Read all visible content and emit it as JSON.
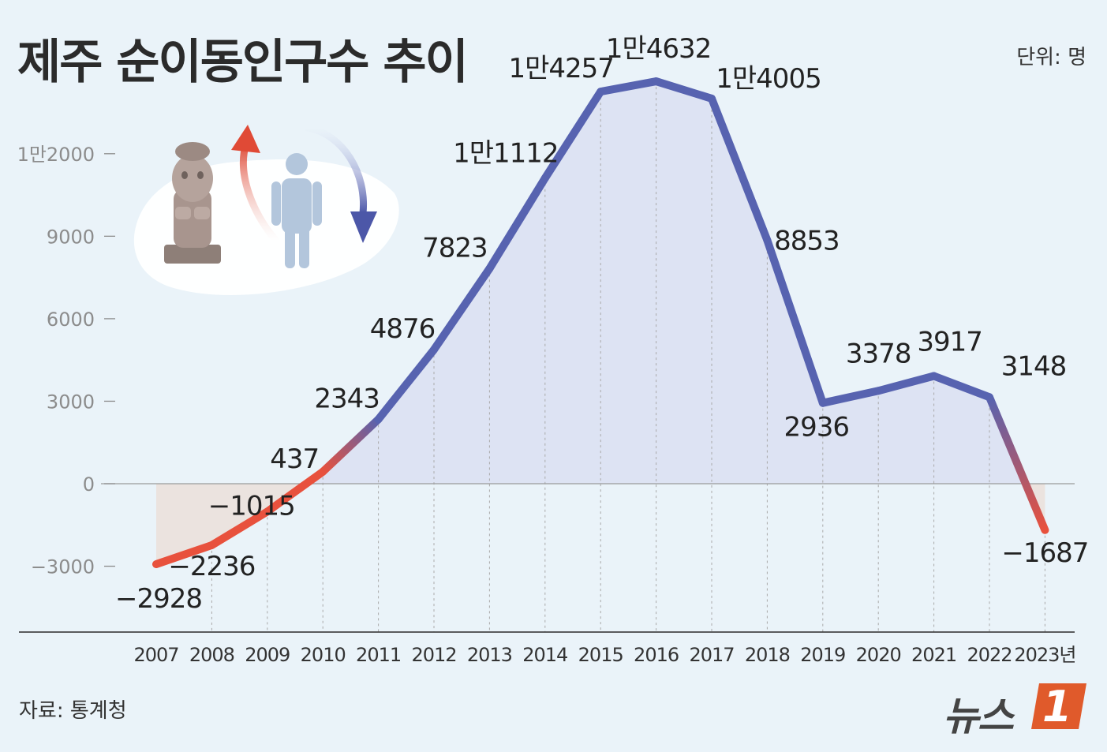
{
  "title": "제주 순이동인구수 추이",
  "unit_label": "단위: 명",
  "source": "자료: 통계청",
  "logo": {
    "text": "뉴스",
    "badge": "1"
  },
  "colors": {
    "background": "#eaf3f9",
    "positive_line": "#5763b0",
    "negative_line": "#e8513d",
    "positive_fill": "#dde3f3",
    "negative_fill": "#ebe3df",
    "axis": "#888888",
    "logo_accent": "#e05a2b"
  },
  "illustration": {
    "icons": [
      "dol-hareubang-icon",
      "person-icon",
      "arrow-up-icon",
      "arrow-down-icon",
      "jeju-island-icon"
    ]
  },
  "chart_data": {
    "type": "line",
    "title": "제주 순이동인구수 추이",
    "unit": "명",
    "x_suffix": "년",
    "categories": [
      "2007",
      "2008",
      "2009",
      "2010",
      "2011",
      "2012",
      "2013",
      "2014",
      "2015",
      "2016",
      "2017",
      "2018",
      "2019",
      "2020",
      "2021",
      "2022",
      "2023"
    ],
    "values": [
      -2928,
      -2236,
      -1015,
      437,
      2343,
      4876,
      7823,
      11112,
      14257,
      14632,
      14005,
      8853,
      2936,
      3378,
      3917,
      3148,
      -1687
    ],
    "data_labels": [
      "−2928",
      "−2236",
      "−1015",
      "437",
      "2343",
      "4876",
      "7823",
      "1만1112",
      "1만4257",
      "1만4632",
      "1만4005",
      "8853",
      "2936",
      "3378",
      "3917",
      "3148",
      "−1687"
    ],
    "y_ticks": [
      12000,
      9000,
      6000,
      3000,
      0,
      -3000
    ],
    "y_tick_labels": [
      "1만2000",
      "9000",
      "6000",
      "3000",
      "0",
      "−3000"
    ],
    "ylim": [
      -5400,
      14632
    ],
    "grid": false,
    "legend": "none"
  }
}
